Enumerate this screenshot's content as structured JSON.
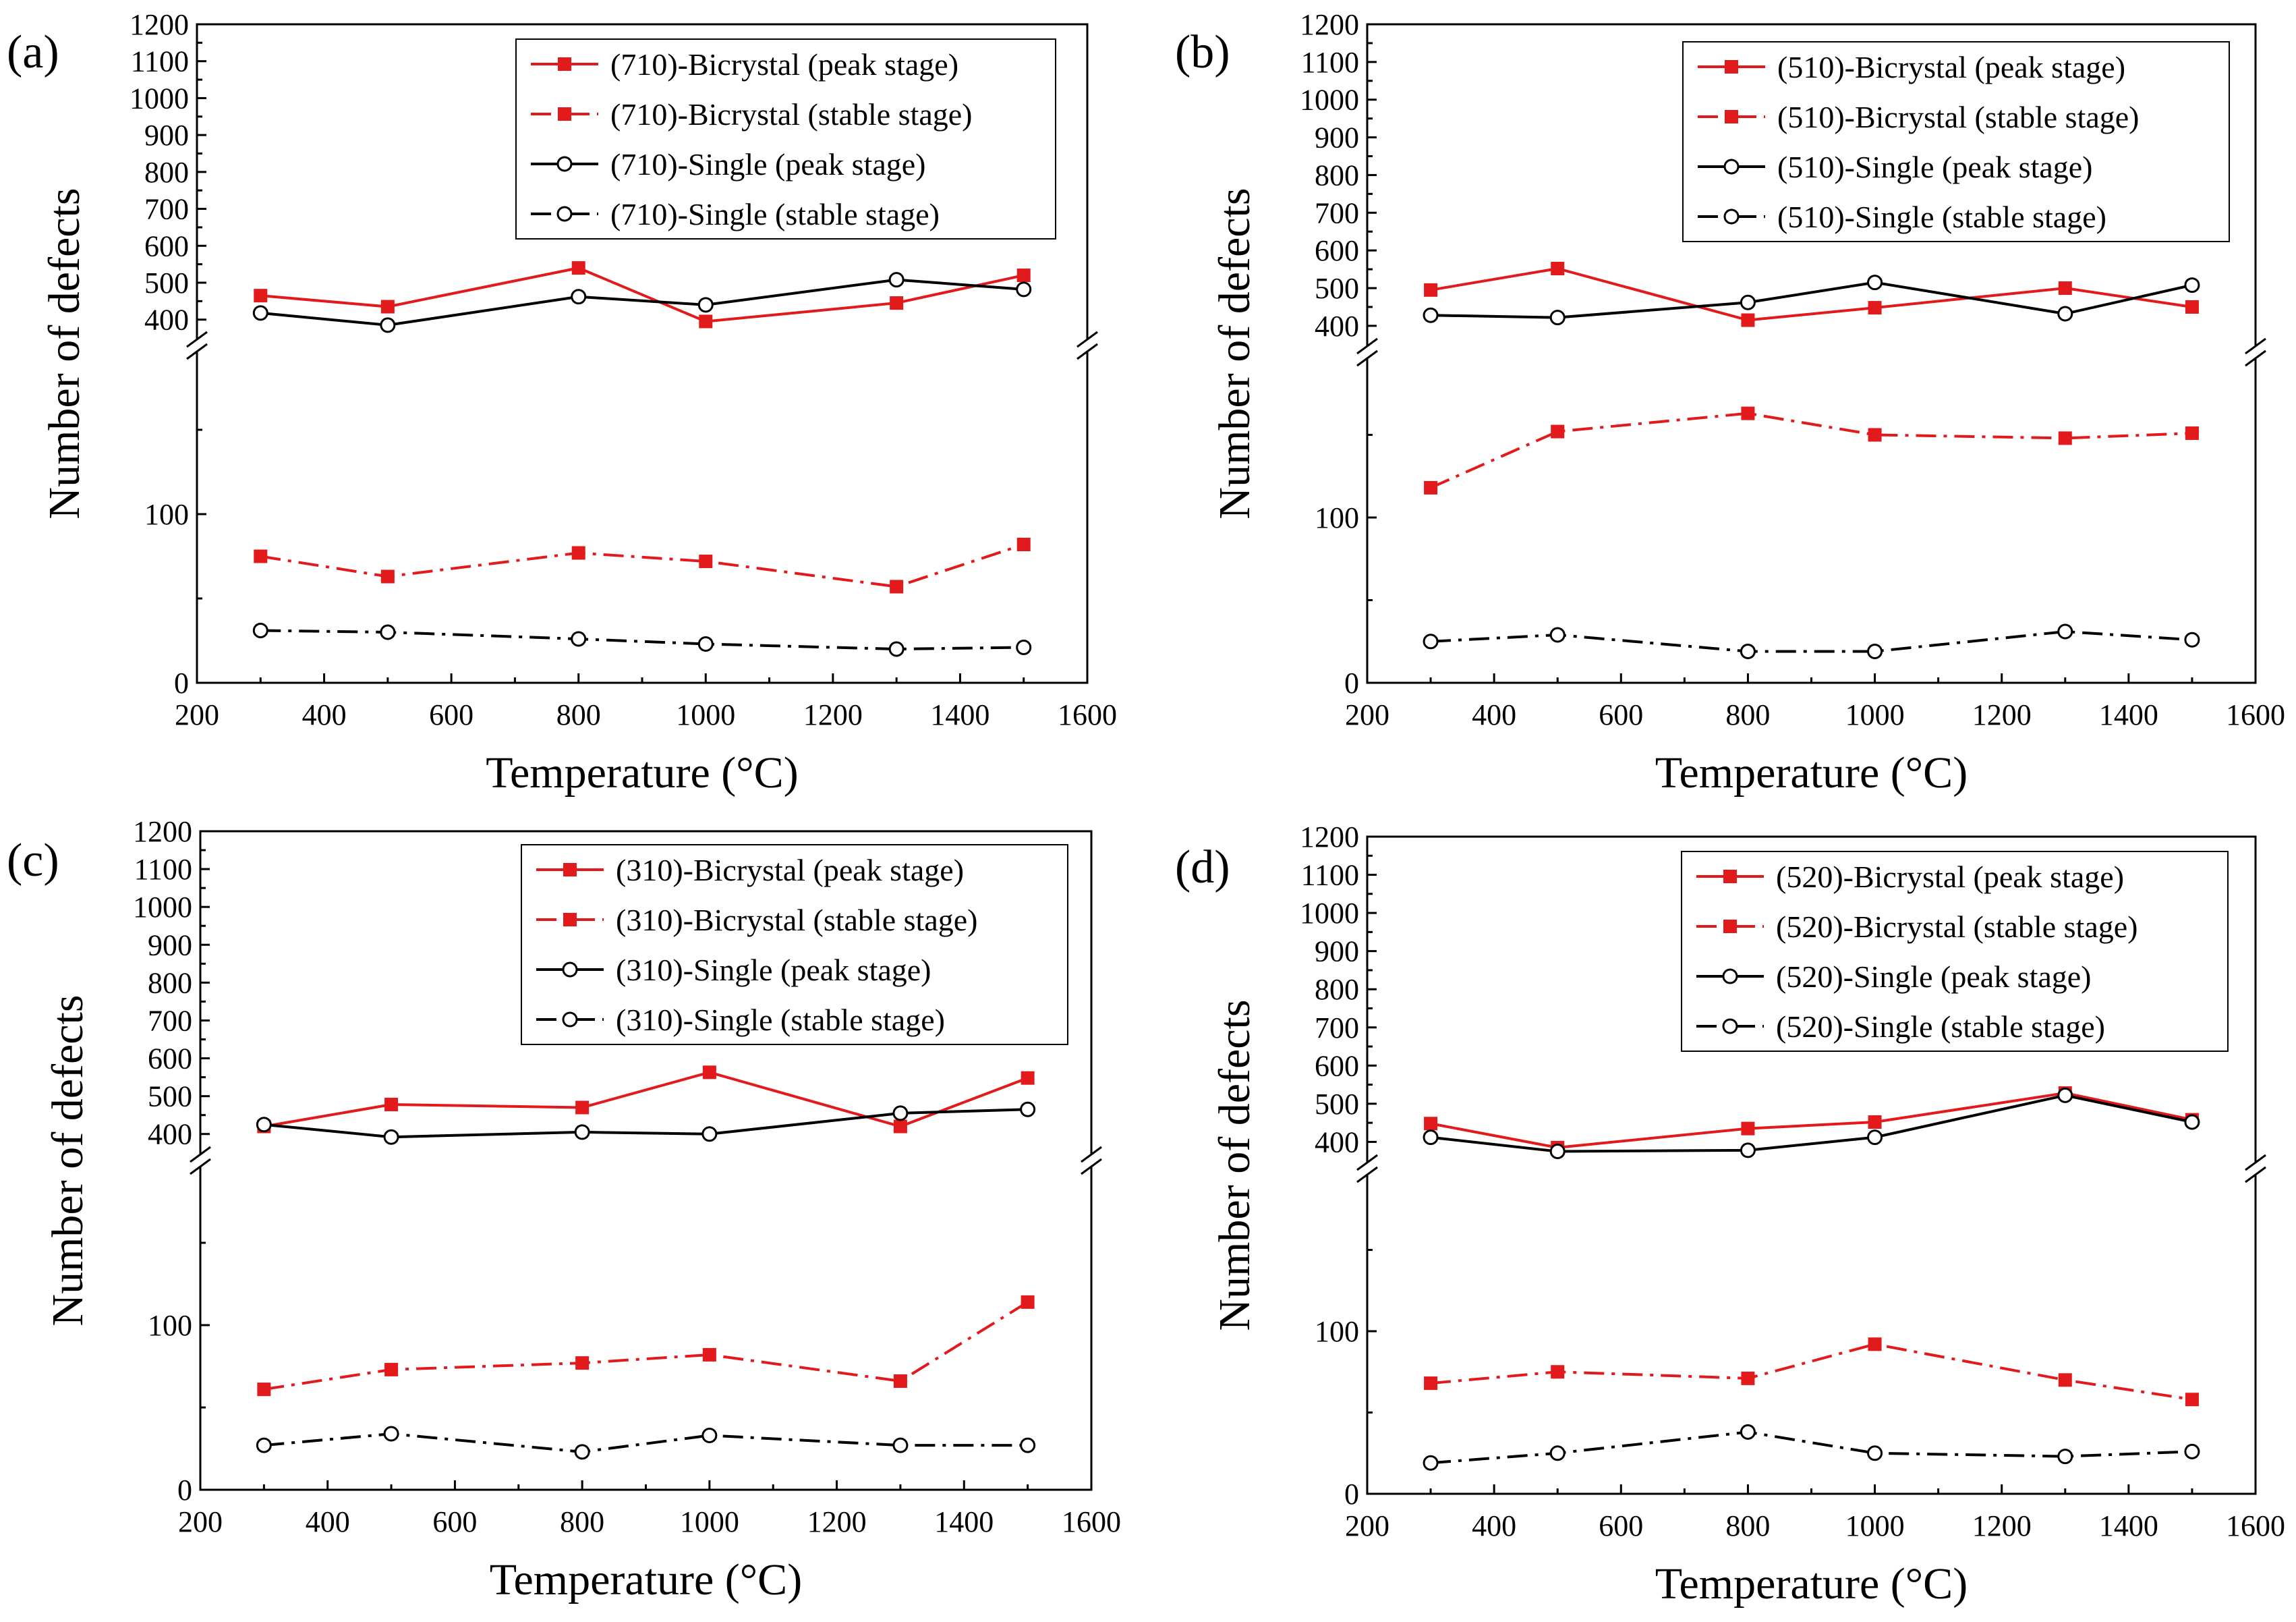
{
  "chart_data": [
    {
      "panel_label": "(a)",
      "type": "line",
      "xlabel": "Temperature (°C)",
      "ylabel": "Number of defects",
      "xlim": [
        200,
        1600
      ],
      "x_ticks": [
        "200",
        "400",
        "600",
        "800",
        "1000",
        "1200",
        "1400",
        "1600"
      ],
      "y_break": true,
      "y_lower_range": [
        0,
        200
      ],
      "y_upper_range": [
        330,
        1200
      ],
      "y_ticks": [
        "0",
        "100",
        "400",
        "500",
        "600",
        "700",
        "800",
        "900",
        "1000",
        "1100",
        "1200"
      ],
      "x": [
        300,
        500,
        800,
        1000,
        1300,
        1500
      ],
      "series": [
        {
          "name": "(710)-Bicrystal (peak stage)",
          "values": [
            465,
            435,
            540,
            395,
            445,
            520
          ]
        },
        {
          "name": "(710)-Bicrystal (stable stage)",
          "values": [
            75,
            63,
            77,
            72,
            57,
            82
          ]
        },
        {
          "name": "(710)-Single (peak stage)",
          "values": [
            418,
            385,
            462,
            440,
            508,
            482
          ]
        },
        {
          "name": "(710)-Single (stable stage)",
          "values": [
            31,
            30,
            26,
            23,
            20,
            21
          ]
        }
      ]
    },
    {
      "panel_label": "(b)",
      "type": "line",
      "xlabel": "Temperature (°C)",
      "ylabel": "Number of defects",
      "xlim": [
        200,
        1600
      ],
      "x_ticks": [
        "200",
        "400",
        "600",
        "800",
        "1000",
        "1200",
        "1400",
        "1600"
      ],
      "y_break": true,
      "y_lower_range": [
        0,
        200
      ],
      "y_upper_range": [
        330,
        1200
      ],
      "y_ticks": [
        "0",
        "100",
        "400",
        "500",
        "600",
        "700",
        "800",
        "900",
        "1000",
        "1100",
        "1200"
      ],
      "x": [
        300,
        500,
        800,
        1000,
        1300,
        1500
      ],
      "series": [
        {
          "name": "(510)-Bicrystal (peak stage)",
          "values": [
            495,
            552,
            415,
            448,
            500,
            450
          ]
        },
        {
          "name": "(510)-Bicrystal (stable stage)",
          "values": [
            118,
            152,
            163,
            150,
            148,
            151
          ]
        },
        {
          "name": "(510)-Single (peak stage)",
          "values": [
            428,
            422,
            462,
            515,
            432,
            508
          ]
        },
        {
          "name": "(510)-Single (stable stage)",
          "values": [
            25,
            29,
            19,
            19,
            31,
            26
          ]
        }
      ]
    },
    {
      "panel_label": "(c)",
      "type": "line",
      "xlabel": "Temperature (°C)",
      "ylabel": "Number of defects",
      "xlim": [
        200,
        1600
      ],
      "x_ticks": [
        "200",
        "400",
        "600",
        "800",
        "1000",
        "1200",
        "1400",
        "1600"
      ],
      "y_break": true,
      "y_lower_range": [
        0,
        200
      ],
      "y_upper_range": [
        330,
        1200
      ],
      "y_ticks": [
        "0",
        "100",
        "400",
        "500",
        "600",
        "700",
        "800",
        "900",
        "1000",
        "1100",
        "1200"
      ],
      "x": [
        300,
        500,
        800,
        1000,
        1300,
        1500
      ],
      "series": [
        {
          "name": "(310)-Bicrystal (peak stage)",
          "values": [
            420,
            478,
            470,
            563,
            420,
            548
          ]
        },
        {
          "name": "(310)-Bicrystal (stable stage)",
          "values": [
            61,
            73,
            77,
            82,
            66,
            114
          ]
        },
        {
          "name": "(310)-Single (peak stage)",
          "values": [
            425,
            392,
            405,
            400,
            455,
            465
          ]
        },
        {
          "name": "(310)-Single  (stable stage)",
          "values": [
            27,
            34,
            23,
            33,
            27,
            27
          ]
        }
      ]
    },
    {
      "panel_label": "(d)",
      "type": "line",
      "xlabel": "Temperature (°C)",
      "ylabel": "Number of defects",
      "xlim": [
        200,
        1600
      ],
      "x_ticks": [
        "200",
        "400",
        "600",
        "800",
        "1000",
        "1200",
        "1400",
        "1600"
      ],
      "y_break": true,
      "y_lower_range": [
        0,
        200
      ],
      "y_upper_range": [
        330,
        1200
      ],
      "y_ticks": [
        "0",
        "100",
        "400",
        "500",
        "600",
        "700",
        "800",
        "900",
        "1000",
        "1100",
        "1200"
      ],
      "x": [
        300,
        500,
        800,
        1000,
        1300,
        1500
      ],
      "series": [
        {
          "name": "(520)-Bicrystal (peak stage)",
          "values": [
            448,
            385,
            435,
            452,
            528,
            458
          ]
        },
        {
          "name": "(520)-Bicrystal (stable stage)",
          "values": [
            68,
            75,
            71,
            92,
            70,
            58
          ]
        },
        {
          "name": "(520)-Single (peak stage)",
          "values": [
            412,
            375,
            378,
            412,
            522,
            452
          ]
        },
        {
          "name": "(520)-Single (stable stage)",
          "values": [
            19,
            25,
            38,
            25,
            23,
            26
          ]
        }
      ]
    }
  ],
  "series_style": [
    {
      "color": "#e31a1c",
      "dash": "solid",
      "marker": "square-filled"
    },
    {
      "color": "#e31a1c",
      "dash": "dashdot",
      "marker": "square-filled"
    },
    {
      "color": "#000000",
      "dash": "solid",
      "marker": "circle-open"
    },
    {
      "color": "#000000",
      "dash": "dashdot",
      "marker": "circle-open"
    }
  ]
}
